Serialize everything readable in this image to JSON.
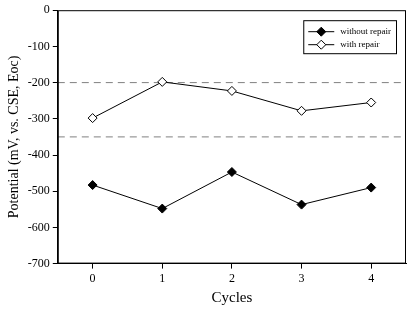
{
  "chart_data": {
    "type": "line",
    "x_label": "Cycles",
    "y_label": "Potential (mV, vs. CSE, Eoc)",
    "x": [
      0,
      1,
      2,
      3,
      4
    ],
    "series": [
      {
        "name": "without repair",
        "color": "#000000",
        "marker": "diamond",
        "line_style": "solid",
        "values": [
          -483,
          -548,
          -447,
          -537,
          -490
        ]
      },
      {
        "name": "with repair",
        "color": "#000000",
        "marker": "open_diamond",
        "line_style": "solid",
        "values": [
          -298,
          -198,
          -223,
          -278,
          -255
        ]
      }
    ],
    "reference_lines": [
      -200,
      -350
    ],
    "xlim": [
      -0.5,
      4.5
    ],
    "xticks": [
      0,
      1,
      2,
      3,
      4
    ],
    "ylim": [
      -700,
      0
    ],
    "yticks": [
      -700,
      -600,
      -500,
      -400,
      -300,
      -200,
      -100,
      0
    ],
    "grid": false,
    "legend": "upper right"
  }
}
